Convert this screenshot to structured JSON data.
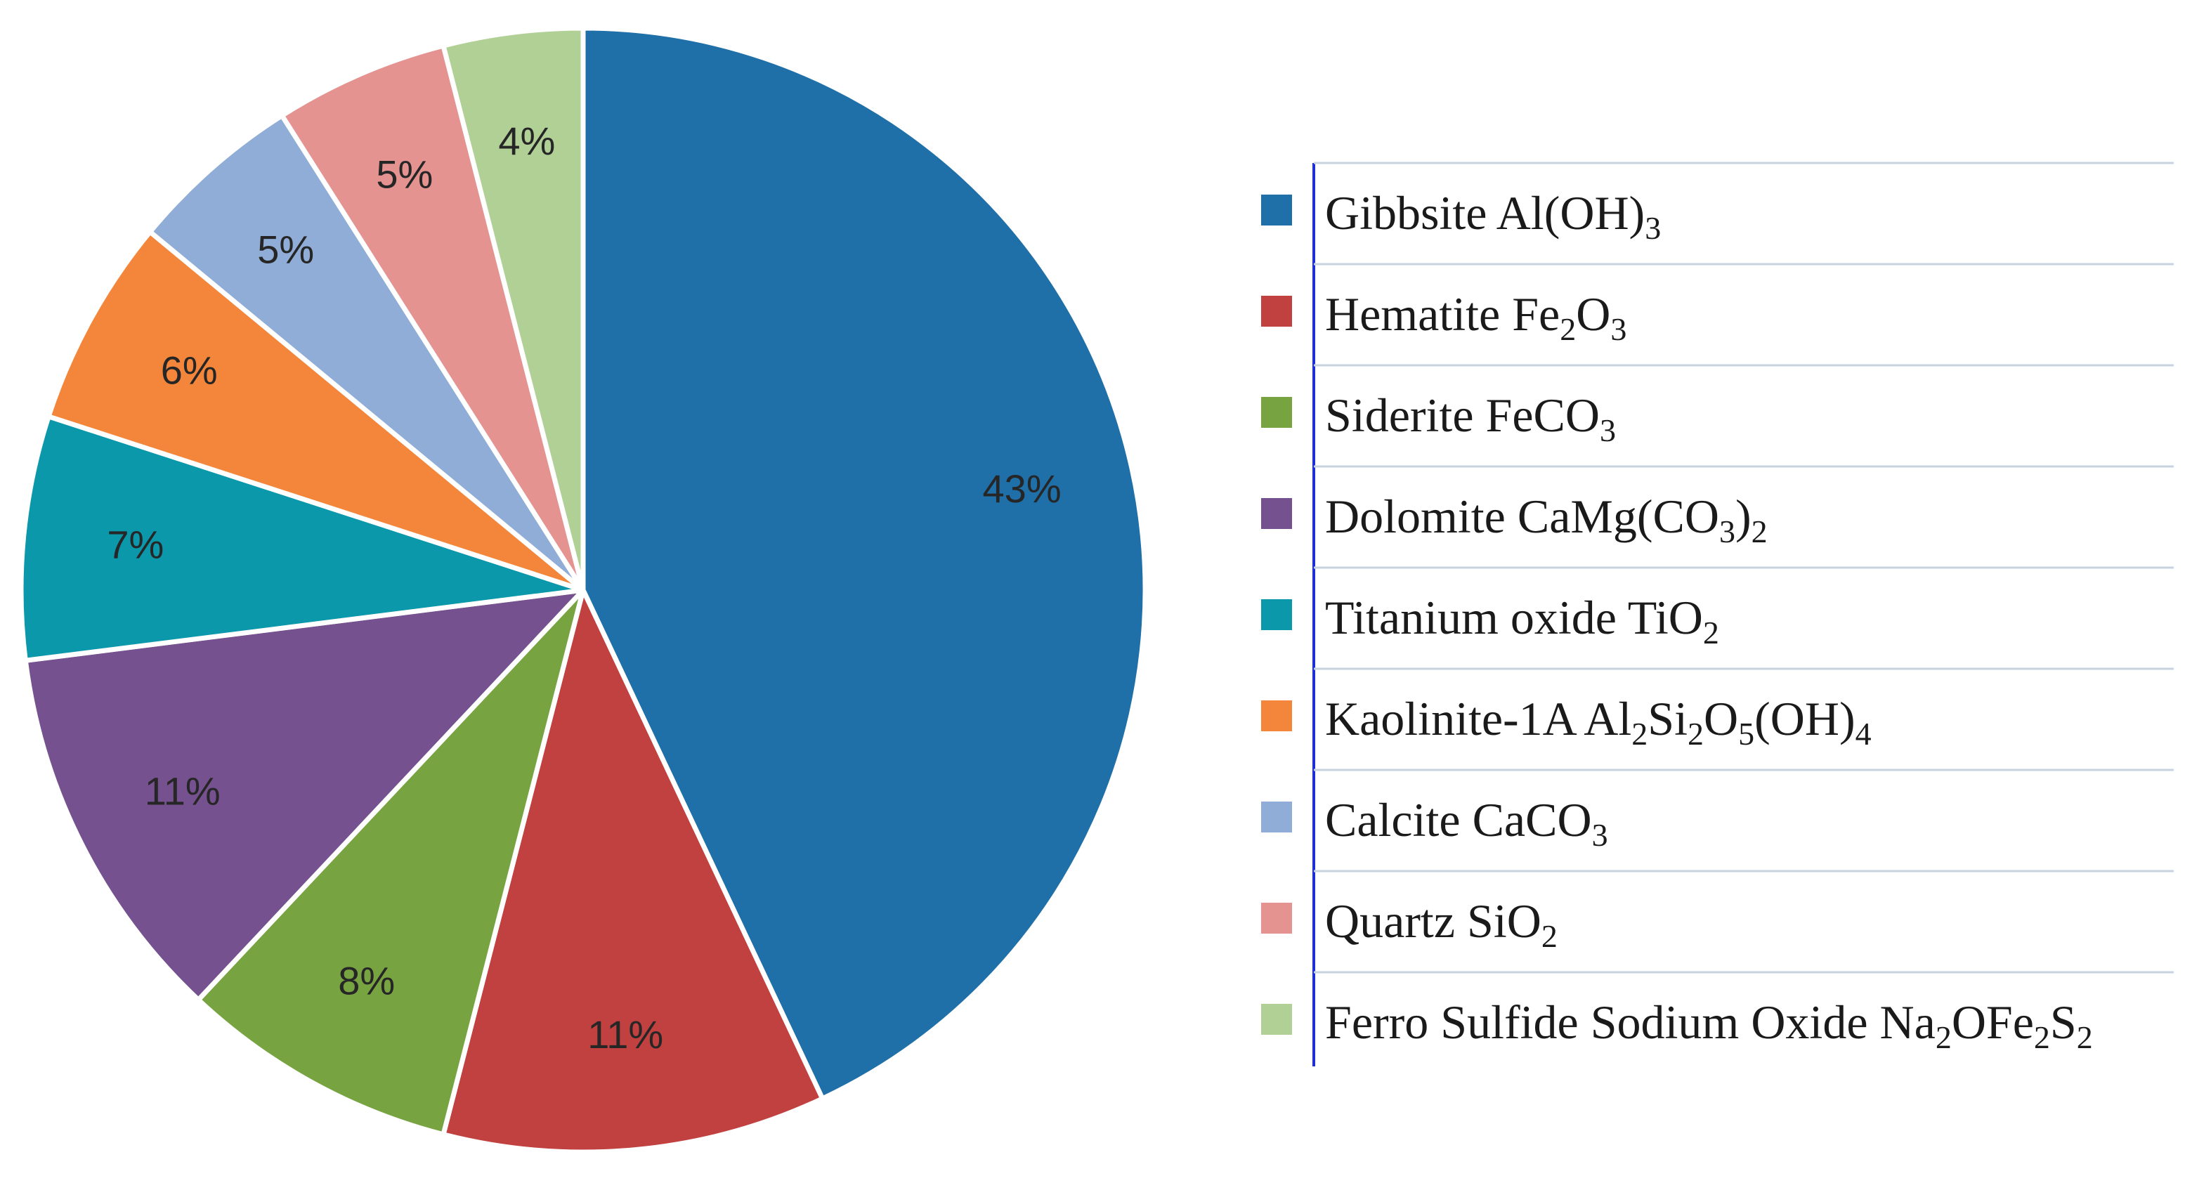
{
  "chart_data": {
    "type": "pie",
    "title": "",
    "slices": [
      {
        "name": "Gibbsite",
        "formula": [
          [
            "Al(OH)",
            false
          ],
          [
            "3",
            true
          ]
        ],
        "value": 43,
        "label": "43%",
        "color": "#1f6fa8"
      },
      {
        "name": "Hematite",
        "formula": [
          [
            "Fe",
            false
          ],
          [
            "2",
            true
          ],
          [
            "O",
            false
          ],
          [
            "3",
            true
          ]
        ],
        "value": 11,
        "label": "11%",
        "color": "#c0413f"
      },
      {
        "name": "Siderite",
        "formula": [
          [
            "FeCO",
            false
          ],
          [
            "3",
            true
          ]
        ],
        "value": 8,
        "label": "8%",
        "color": "#78a341"
      },
      {
        "name": "Dolomite",
        "formula": [
          [
            "CaMg(CO",
            false
          ],
          [
            "3",
            true
          ],
          [
            ")",
            false
          ],
          [
            "2",
            true
          ]
        ],
        "value": 11,
        "label": "11%",
        "color": "#76518f"
      },
      {
        "name": "Titanium oxide",
        "formula": [
          [
            "TiO",
            false
          ],
          [
            "2",
            true
          ]
        ],
        "value": 7,
        "label": "7%",
        "color": "#0c98ab"
      },
      {
        "name": "Kaolinite-1A",
        "formula": [
          [
            "Al",
            false
          ],
          [
            "2",
            true
          ],
          [
            "Si",
            false
          ],
          [
            "2",
            true
          ],
          [
            "O",
            false
          ],
          [
            "5",
            true
          ],
          [
            "(OH)",
            false
          ],
          [
            "4",
            true
          ]
        ],
        "value": 6,
        "label": "6%",
        "color": "#f3863a"
      },
      {
        "name": "Calcite",
        "formula": [
          [
            "CaCO",
            false
          ],
          [
            "3",
            true
          ]
        ],
        "value": 5,
        "label": "5%",
        "color": "#8fadd6"
      },
      {
        "name": "Quartz",
        "formula": [
          [
            "SiO",
            false
          ],
          [
            "2",
            true
          ]
        ],
        "value": 5,
        "label": "5%",
        "color": "#e49391"
      },
      {
        "name": "Ferro Sulfide Sodium Oxide",
        "formula": [
          [
            "Na",
            false
          ],
          [
            "2",
            true
          ],
          [
            "OFe",
            false
          ],
          [
            "2",
            true
          ],
          [
            "S",
            false
          ],
          [
            "2",
            true
          ]
        ],
        "value": 4,
        "label": "4%",
        "color": "#b1d096"
      }
    ],
    "legend_position": "right",
    "start": "12 o'clock",
    "direction": "clockwise"
  }
}
